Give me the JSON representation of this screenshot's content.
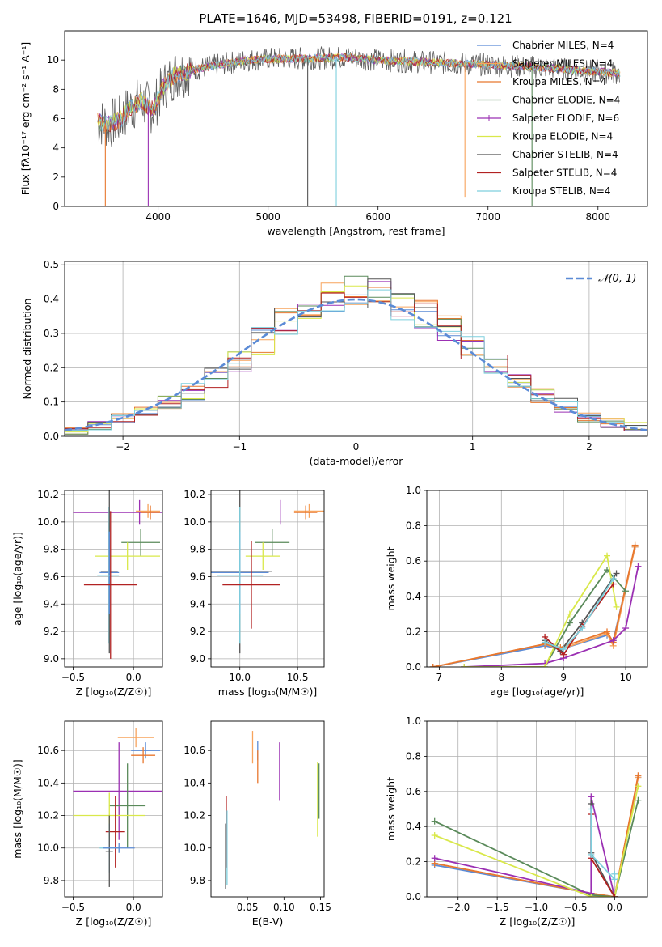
{
  "figure": {
    "title": "PLATE=1646, MJD=53498, FIBERID=0191, z=0.121"
  },
  "series_colors": {
    "Chabrier MILES": "#5b8bd6",
    "Salpeter MILES": "#f7a35c",
    "Kroupa MILES": "#e8772e",
    "Chabrier ELODIE": "#5a8a5a",
    "Salpeter ELODIE": "#9b30b3",
    "Kroupa ELODIE": "#d9e84a",
    "Chabrier STELIB": "#555555",
    "Salpeter STELIB": "#b22222",
    "Kroupa STELIB": "#7ecfdd"
  },
  "chart_data": [
    {
      "id": "spectrum",
      "type": "line",
      "xlabel": "wavelength [Angstrom, rest frame]",
      "ylabel": "Flux [fλ10⁻¹⁷ erg cm⁻² s⁻¹ A⁻¹]",
      "xlim": [
        3150,
        8450
      ],
      "ylim": [
        0,
        12
      ],
      "xticks": [
        4000,
        5000,
        6000,
        7000,
        8000
      ],
      "yticks": [
        0,
        2,
        4,
        6,
        8,
        10
      ],
      "grid": false,
      "legend_position": "right",
      "legend": [
        "Chabrier MILES, N_SSP=4",
        "Salpeter MILES, N_SSP=4",
        "Kroupa MILES, N_SSP=4",
        "Chabrier ELODIE, N_SSP=4",
        "Salpeter ELODIE, N_SSP=6",
        "Kroupa ELODIE, N_SSP=4",
        "Chabrier STELIB, N_SSP=4",
        "Salpeter STELIB, N_SSP=4",
        "Kroupa STELIB, N_SSP=4"
      ],
      "continuum": {
        "x": [
          3450,
          3550,
          3650,
          3750,
          3850,
          3950,
          4050,
          4150,
          4300,
          4500,
          4800,
          5100,
          5400,
          5700,
          6000,
          6300,
          6600,
          6900,
          7200,
          7500,
          7800,
          8000,
          8200
        ],
        "y": [
          5.8,
          5.6,
          5.9,
          6.8,
          7.2,
          6.6,
          8.2,
          9.0,
          9.3,
          9.6,
          10.0,
          10.1,
          10.1,
          10.2,
          10.0,
          9.9,
          9.8,
          9.7,
          9.6,
          9.5,
          9.3,
          9.2,
          9.1
        ]
      },
      "dips": [
        {
          "x": 3520,
          "y": 0
        },
        {
          "x": 3910,
          "y": 0
        },
        {
          "x": 5360,
          "y": 0
        },
        {
          "x": 5620,
          "y": 0
        },
        {
          "x": 6790,
          "y": 0.6
        },
        {
          "x": 7400,
          "y": 0
        }
      ]
    },
    {
      "id": "residuals",
      "type": "histogram",
      "xlabel": "(data-model)/error",
      "ylabel": "Normed distribution",
      "xlim": [
        -2.5,
        2.5
      ],
      "ylim": [
        0,
        0.51
      ],
      "xticks": [
        -2,
        -1,
        0,
        1,
        2
      ],
      "yticks": [
        0.0,
        0.1,
        0.2,
        0.3,
        0.4,
        0.5
      ],
      "grid": true,
      "legend": [
        "𝒩(0, 1)"
      ],
      "bin_edges": [
        -2.5,
        -2.3,
        -2.1,
        -1.9,
        -1.7,
        -1.5,
        -1.3,
        -1.1,
        -0.9,
        -0.7,
        -0.5,
        -0.3,
        -0.1,
        0.1,
        0.3,
        0.5,
        0.7,
        0.9,
        1.1,
        1.3,
        1.5,
        1.7,
        1.9,
        2.1,
        2.3,
        2.5
      ],
      "mean_hist": [
        0.02,
        0.03,
        0.05,
        0.07,
        0.1,
        0.13,
        0.17,
        0.22,
        0.28,
        0.33,
        0.37,
        0.4,
        0.42,
        0.41,
        0.39,
        0.36,
        0.31,
        0.26,
        0.21,
        0.16,
        0.12,
        0.09,
        0.06,
        0.04,
        0.03
      ]
    },
    {
      "id": "age-vs-Z",
      "type": "errorbar",
      "xlabel": "Z [log₁₀(Z/Z☉)]",
      "ylabel": "age  [log₁₀(age/yr)]",
      "xlim": [
        -0.57,
        0.24
      ],
      "ylim": [
        8.94,
        10.23
      ],
      "xticks": [
        -0.5,
        0.0
      ],
      "yticks": [
        9.0,
        9.2,
        9.4,
        9.6,
        9.8,
        10.0,
        10.2
      ],
      "grid": true,
      "points": [
        {
          "series": "Salpeter ELODIE",
          "x": 0.05,
          "xerr": 0.55,
          "y": 10.07,
          "yerr": 0.09
        },
        {
          "series": "Salpeter MILES",
          "x": 0.12,
          "xerr": 0.1,
          "y": 10.08,
          "yerr": 0.05
        },
        {
          "series": "Kroupa MILES",
          "x": 0.14,
          "xerr": 0.08,
          "y": 10.07,
          "yerr": 0.05
        },
        {
          "series": "Chabrier ELODIE",
          "x": 0.06,
          "xerr": 0.16,
          "y": 9.85,
          "yerr": 0.1
        },
        {
          "series": "Kroupa ELODIE",
          "x": -0.05,
          "xerr": 0.27,
          "y": 9.75,
          "yerr": 0.1
        },
        {
          "series": "Chabrier STELIB",
          "x": -0.2,
          "xerr": 0.07,
          "y": 9.64,
          "yerr": 0.6
        },
        {
          "series": "Chabrier MILES",
          "x": -0.2,
          "xerr": 0.08,
          "y": 9.63,
          "yerr": 0.3
        },
        {
          "series": "Kroupa STELIB",
          "x": -0.21,
          "xerr": 0.09,
          "y": 9.61,
          "yerr": 0.5
        },
        {
          "series": "Salpeter STELIB",
          "x": -0.19,
          "xerr": 0.22,
          "y": 9.54,
          "yerr": 0.54
        }
      ]
    },
    {
      "id": "age-vs-mass",
      "type": "errorbar",
      "xlabel": "mass [log₁₀(M/M☉)]",
      "ylabel": "",
      "xlim": [
        9.75,
        10.73
      ],
      "ylim": [
        8.94,
        10.23
      ],
      "xticks": [
        10.0,
        10.5
      ],
      "yticks": [
        9.0,
        9.2,
        9.4,
        9.6,
        9.8,
        10.0,
        10.2
      ],
      "grid": true,
      "points": [
        {
          "series": "Salpeter ELODIE",
          "x": 10.35,
          "xerr": 0.0,
          "y": 10.07,
          "yerr": 0.09
        },
        {
          "series": "Salpeter MILES",
          "x": 10.6,
          "xerr": 0.13,
          "y": 10.08,
          "yerr": 0.05
        },
        {
          "series": "Kroupa MILES",
          "x": 10.57,
          "xerr": 0.1,
          "y": 10.07,
          "yerr": 0.05
        },
        {
          "series": "Chabrier ELODIE",
          "x": 10.28,
          "xerr": 0.15,
          "y": 9.85,
          "yerr": 0.1
        },
        {
          "series": "Kroupa ELODIE",
          "x": 10.2,
          "xerr": 0.15,
          "y": 9.75,
          "yerr": 0.1
        },
        {
          "series": "Chabrier STELIB",
          "x": 10.0,
          "xerr": 0.28,
          "y": 9.64,
          "yerr": 0.6
        },
        {
          "series": "Chabrier MILES",
          "x": 10.0,
          "xerr": 0.25,
          "y": 9.63,
          "yerr": 0.3
        },
        {
          "series": "Kroupa STELIB",
          "x": 10.0,
          "xerr": 0.2,
          "y": 9.61,
          "yerr": 0.5
        },
        {
          "series": "Salpeter STELIB",
          "x": 10.1,
          "xerr": 0.25,
          "y": 9.54,
          "yerr": 0.32
        }
      ]
    },
    {
      "id": "massweight-vs-age",
      "type": "line",
      "xlabel": "age  [log₁₀(age/yr)]",
      "ylabel": "mass weight",
      "xlim": [
        6.8,
        10.35
      ],
      "ylim": [
        0,
        1.0
      ],
      "xticks": [
        7,
        8,
        9,
        10
      ],
      "yticks": [
        0.0,
        0.2,
        0.4,
        0.6,
        0.8,
        1.0
      ],
      "grid": true,
      "series": [
        {
          "name": "Chabrier MILES",
          "x": [
            6.9,
            8.7,
            8.95,
            9.7,
            9.8,
            10.15
          ],
          "y": [
            0.0,
            0.12,
            0.1,
            0.18,
            0.15,
            0.68
          ]
        },
        {
          "name": "Salpeter MILES",
          "x": [
            6.9,
            8.7,
            8.95,
            9.7,
            9.8,
            10.15
          ],
          "y": [
            0.0,
            0.13,
            0.1,
            0.19,
            0.12,
            0.68
          ]
        },
        {
          "name": "Kroupa MILES",
          "x": [
            6.9,
            8.7,
            8.95,
            9.7,
            9.8,
            10.15
          ],
          "y": [
            0.0,
            0.13,
            0.11,
            0.2,
            0.14,
            0.69
          ]
        },
        {
          "name": "Chabrier ELODIE",
          "x": [
            7.4,
            8.7,
            9.1,
            9.7,
            10.0
          ],
          "y": [
            0.0,
            0.0,
            0.25,
            0.55,
            0.43
          ]
        },
        {
          "name": "Salpeter ELODIE",
          "x": [
            7.4,
            8.7,
            9.0,
            9.8,
            10.0,
            10.2
          ],
          "y": [
            0.0,
            0.02,
            0.05,
            0.15,
            0.22,
            0.57
          ]
        },
        {
          "name": "Kroupa ELODIE",
          "x": [
            7.4,
            8.7,
            9.1,
            9.7,
            9.85
          ],
          "y": [
            0.0,
            0.0,
            0.3,
            0.63,
            0.34
          ]
        },
        {
          "name": "Chabrier STELIB",
          "x": [
            8.7,
            8.95,
            9.3,
            9.85
          ],
          "y": [
            0.15,
            0.09,
            0.25,
            0.53
          ]
        },
        {
          "name": "Salpeter STELIB",
          "x": [
            8.7,
            9.0,
            9.3,
            9.8
          ],
          "y": [
            0.17,
            0.07,
            0.23,
            0.47
          ]
        },
        {
          "name": "Kroupa STELIB",
          "x": [
            8.7,
            9.0,
            9.3,
            9.8
          ],
          "y": [
            0.14,
            0.1,
            0.22,
            0.5
          ]
        }
      ]
    },
    {
      "id": "mass-vs-Z",
      "type": "errorbar",
      "xlabel": "Z [log₁₀(Z/Z☉)]",
      "ylabel": "mass [log₁₀(M/M☉)]",
      "xlim": [
        -0.57,
        0.24
      ],
      "ylim": [
        9.7,
        10.78
      ],
      "xticks": [
        -0.5,
        0.0
      ],
      "yticks": [
        9.8,
        10.0,
        10.2,
        10.4,
        10.6
      ],
      "grid": true,
      "points": [
        {
          "series": "Salpeter MILES",
          "x": 0.02,
          "xerr": 0.15,
          "y": 10.68,
          "yerr": 0.06
        },
        {
          "series": "Chabrier MILES",
          "x": 0.1,
          "xerr": 0.12,
          "y": 10.6,
          "yerr": 0.05
        },
        {
          "series": "Kroupa MILES",
          "x": 0.08,
          "xerr": 0.1,
          "y": 10.57,
          "yerr": 0.05
        },
        {
          "series": "Salpeter ELODIE",
          "x": -0.12,
          "xerr": 0.38,
          "y": 10.35,
          "yerr": 0.3
        },
        {
          "series": "Chabrier ELODIE",
          "x": -0.05,
          "xerr": 0.15,
          "y": 10.26,
          "yerr": 0.26
        },
        {
          "series": "Kroupa ELODIE",
          "x": -0.2,
          "xerr": 0.3,
          "y": 10.2,
          "yerr": 0.14
        },
        {
          "series": "Salpeter STELIB",
          "x": -0.15,
          "xerr": 0.08,
          "y": 10.1,
          "yerr": 0.22
        },
        {
          "series": "Kroupa STELIB",
          "x": -0.2,
          "xerr": 0.08,
          "y": 10.0,
          "yerr": 0.15
        },
        {
          "series": "Chabrier STELIB",
          "x": -0.2,
          "xerr": 0.03,
          "y": 9.98,
          "yerr": 0.22
        },
        {
          "series": "Chabrier MILES",
          "x": -0.12,
          "xerr": 0.13,
          "y": 10.0,
          "yerr": 0.03
        }
      ]
    },
    {
      "id": "mass-vs-EBV",
      "type": "errorbar",
      "xlabel": "E(B-V)",
      "ylabel": "",
      "xlim": [
        0.0,
        0.155
      ],
      "ylim": [
        9.7,
        10.78
      ],
      "xticks": [
        0.05,
        0.1,
        0.15
      ],
      "yticks": [
        9.8,
        10.0,
        10.2,
        10.4,
        10.6
      ],
      "grid": false,
      "points": [
        {
          "series": "Salpeter MILES",
          "x": 0.057,
          "y": 10.62,
          "yerr": 0.1
        },
        {
          "series": "Chabrier MILES",
          "x": 0.064,
          "y": 10.6,
          "yerr": 0.06
        },
        {
          "series": "Kroupa MILES",
          "x": 0.064,
          "y": 10.5,
          "yerr": 0.1
        },
        {
          "series": "Salpeter ELODIE",
          "x": 0.094,
          "y": 10.47,
          "yerr": 0.18
        },
        {
          "series": "Kroupa ELODIE",
          "x": 0.146,
          "y": 10.3,
          "yerr": 0.23
        },
        {
          "series": "Chabrier ELODIE",
          "x": 0.148,
          "y": 10.35,
          "yerr": 0.17
        },
        {
          "series": "Salpeter STELIB",
          "x": 0.021,
          "y": 10.1,
          "yerr": 0.22
        },
        {
          "series": "Chabrier STELIB",
          "x": 0.02,
          "y": 9.95,
          "yerr": 0.2
        },
        {
          "series": "Kroupa STELIB",
          "x": 0.022,
          "y": 10.0,
          "yerr": 0.23
        }
      ]
    },
    {
      "id": "massweight-vs-Z",
      "type": "line",
      "xlabel": "Z [log₁₀(Z/Z☉)]",
      "ylabel": "mass weight",
      "xlim": [
        -2.4,
        0.42
      ],
      "ylim": [
        0,
        1.0
      ],
      "xticks": [
        -2.0,
        -1.5,
        -1.0,
        -0.5,
        0.0
      ],
      "yticks": [
        0.0,
        0.2,
        0.4,
        0.6,
        0.8,
        1.0
      ],
      "grid": true,
      "series": [
        {
          "name": "Chabrier MILES",
          "x": [
            -2.3,
            -0.3,
            0.0,
            0.3
          ],
          "y": [
            0.18,
            0.02,
            0.0,
            0.68
          ]
        },
        {
          "name": "Salpeter MILES",
          "x": [
            -2.3,
            -0.3,
            0.0,
            0.3
          ],
          "y": [
            0.19,
            0.02,
            0.0,
            0.68
          ]
        },
        {
          "name": "Kroupa MILES",
          "x": [
            -2.3,
            -0.3,
            0.0,
            0.3
          ],
          "y": [
            0.19,
            0.02,
            0.0,
            0.69
          ]
        },
        {
          "name": "Chabrier ELODIE",
          "x": [
            -2.3,
            -0.3,
            0.0,
            0.3
          ],
          "y": [
            0.43,
            0.01,
            0.0,
            0.55
          ]
        },
        {
          "name": "Salpeter ELODIE",
          "x": [
            -2.3,
            -0.3,
            -0.3,
            0.0
          ],
          "y": [
            0.22,
            0.02,
            0.57,
            0.0
          ]
        },
        {
          "name": "Kroupa ELODIE",
          "x": [
            -2.3,
            -0.3,
            0.0,
            0.3
          ],
          "y": [
            0.35,
            0.0,
            0.0,
            0.63
          ]
        },
        {
          "name": "Chabrier STELIB",
          "x": [
            -0.3,
            -0.3,
            0.0
          ],
          "y": [
            0.53,
            0.25,
            0.0
          ]
        },
        {
          "name": "Salpeter STELIB",
          "x": [
            -0.3,
            -0.3,
            0.0
          ],
          "y": [
            0.47,
            0.22,
            0.0
          ]
        },
        {
          "name": "Kroupa STELIB",
          "x": [
            -0.3,
            -0.3,
            0.0,
            0.0
          ],
          "y": [
            0.5,
            0.24,
            0.1,
            0.13
          ]
        }
      ]
    }
  ]
}
